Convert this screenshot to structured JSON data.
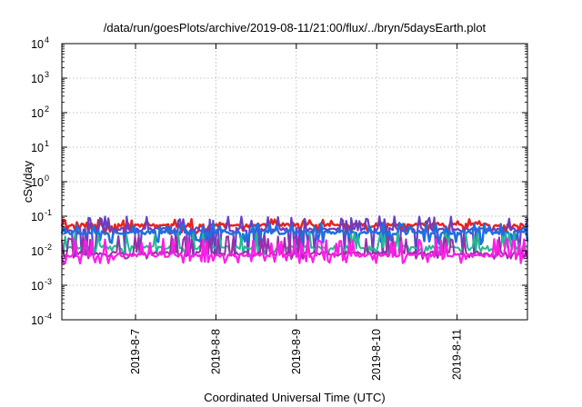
{
  "chart_data": {
    "type": "line",
    "title": "/data/run/goesPlots/archive/2019-08-11/21:00/flux/../bryn/5daysEarth.plot",
    "xlabel": "Coordinated Universal Time (UTC)",
    "ylabel": "cSv/day",
    "yscale": "log",
    "ylim": [
      0.0001,
      10000
    ],
    "y_ticks": [
      {
        "base": "10",
        "exp": "-4"
      },
      {
        "base": "10",
        "exp": "-3"
      },
      {
        "base": "10",
        "exp": "-2"
      },
      {
        "base": "10",
        "exp": "-1"
      },
      {
        "base": "10",
        "exp": "0"
      },
      {
        "base": "10",
        "exp": "1"
      },
      {
        "base": "10",
        "exp": "2"
      },
      {
        "base": "10",
        "exp": "3"
      },
      {
        "base": "10",
        "exp": "4"
      }
    ],
    "xlim": [
      "2019-08-06 02:00",
      "2019-08-11 21:00"
    ],
    "x_ticks": [
      "2019-8-7",
      "2019-8-8",
      "2019-8-9",
      "2019-8-10",
      "2019-8-11"
    ],
    "grid": true,
    "series": [
      {
        "color": "#e8231e",
        "line_width": 2.5,
        "base": 0.055,
        "spike_hi": 0.075,
        "spike_lo": 0.035,
        "seed": 11
      },
      {
        "color": "#6a3fc2",
        "line_width": 2.2,
        "base": 0.042,
        "spike_hi": 0.09,
        "spike_lo": 0.008,
        "seed": 23
      },
      {
        "color": "#1f6fe0",
        "line_width": 2.5,
        "base": 0.034,
        "spike_hi": 0.06,
        "spike_lo": 0.018,
        "seed": 37
      },
      {
        "color": "#22b892",
        "line_width": 2.0,
        "base": 0.0125,
        "spike_hi": 0.03,
        "spike_lo": 0.009,
        "seed": 41
      },
      {
        "color": "#9a2fa8",
        "line_width": 2.0,
        "base": 0.0085,
        "spike_hi": 0.025,
        "spike_lo": 0.0065,
        "seed": 53
      },
      {
        "color": "#ff1ee6",
        "line_width": 2.2,
        "base": 0.0075,
        "spike_hi": 0.02,
        "spike_lo": 0.005,
        "seed": 67
      }
    ]
  }
}
